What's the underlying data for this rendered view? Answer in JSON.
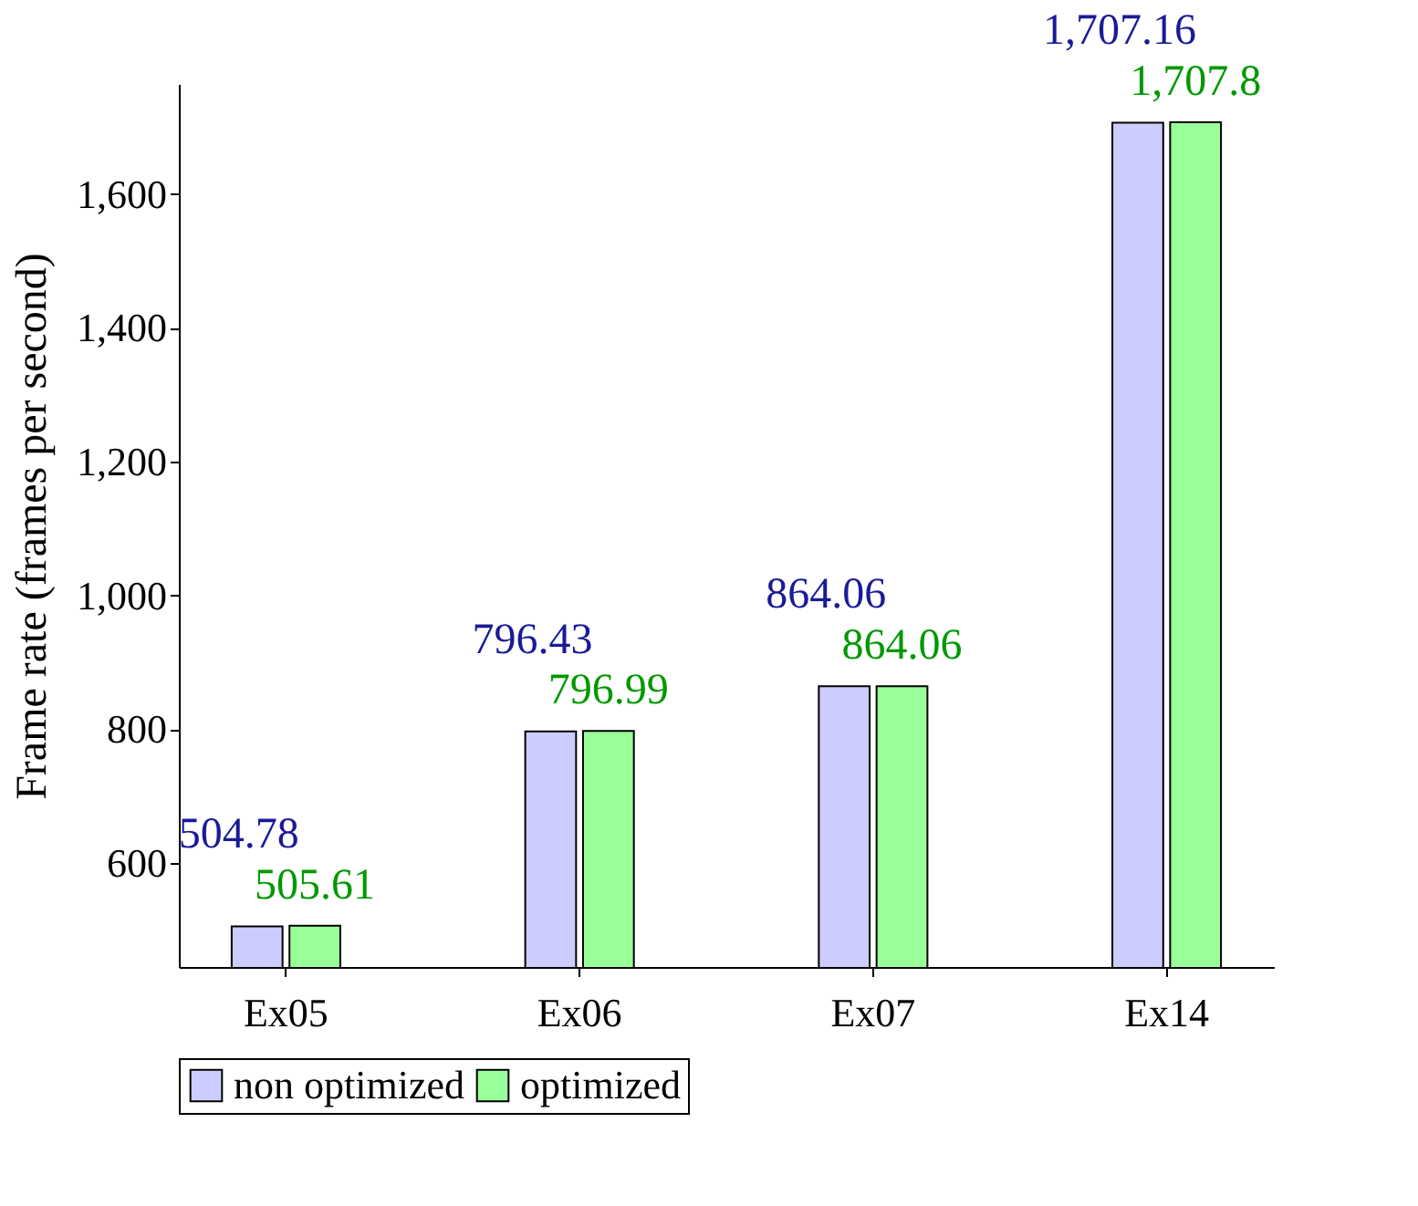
{
  "chart_data": {
    "type": "bar",
    "ylabel": "Frame rate (frames per second)",
    "categories": [
      "Ex05",
      "Ex06",
      "Ex07",
      "Ex14"
    ],
    "series": [
      {
        "name": "non optimized",
        "color": "#ccccff",
        "values": [
          504.78,
          796.43,
          864.06,
          1707.16
        ],
        "value_labels": [
          "504.78",
          "796.43",
          "864.06",
          "1,707.16"
        ]
      },
      {
        "name": "optimized",
        "color": "#99ff99",
        "values": [
          505.61,
          796.99,
          864.06,
          1707.8
        ],
        "value_labels": [
          "505.61",
          "796.99",
          "864.06",
          "1,707.8"
        ]
      }
    ],
    "ylim": [
      444,
      1765
    ],
    "yticks": [
      600,
      800,
      {
        "value": 1000,
        "label": "1,000"
      },
      {
        "value": 1200,
        "label": "1,200"
      },
      {
        "value": 1400,
        "label": "1,400"
      },
      {
        "value": 1600,
        "label": "1,600"
      }
    ],
    "grid": false,
    "legend": "bottom"
  }
}
